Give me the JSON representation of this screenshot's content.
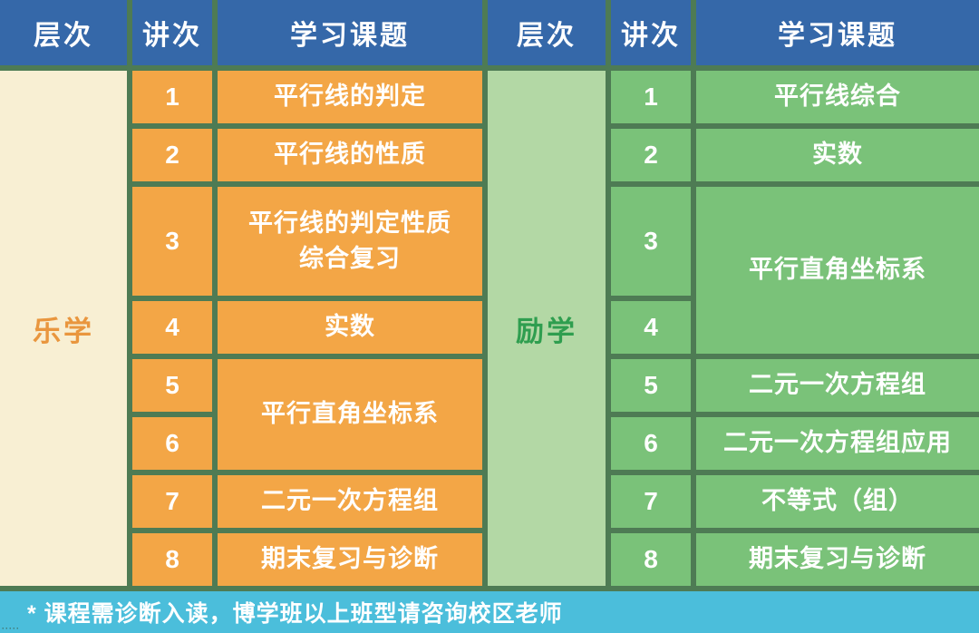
{
  "columns": {
    "level": "层次",
    "lecture": "讲次",
    "topic": "学习课题"
  },
  "sections": [
    {
      "level": "乐学",
      "lectures": [
        "1",
        "2",
        "3",
        "4",
        "5",
        "6",
        "7",
        "8"
      ],
      "topics": [
        {
          "lectures": "1",
          "title": "平行线的判定"
        },
        {
          "lectures": "2",
          "title": "平行线的性质"
        },
        {
          "lectures": "3",
          "title": "平行线的判定性质\n综合复习"
        },
        {
          "lectures": "4",
          "title": "实数"
        },
        {
          "lectures": "5-6",
          "title": "平行直角坐标系"
        },
        {
          "lectures": "7",
          "title": "二元一次方程组"
        },
        {
          "lectures": "8",
          "title": "期末复习与诊断"
        }
      ]
    },
    {
      "level": "励学",
      "lectures": [
        "1",
        "2",
        "3",
        "4",
        "5",
        "6",
        "7",
        "8"
      ],
      "topics": [
        {
          "lectures": "1",
          "title": "平行线综合"
        },
        {
          "lectures": "2",
          "title": "实数"
        },
        {
          "lectures": "3-4",
          "title": "平行直角坐标系"
        },
        {
          "lectures": "5",
          "title": "二元一次方程组"
        },
        {
          "lectures": "6",
          "title": "二元一次方程组应用"
        },
        {
          "lectures": "7",
          "title": "不等式（组）"
        },
        {
          "lectures": "8",
          "title": "期末复习与诊断"
        }
      ]
    }
  ],
  "footer": {
    "note": "* 课程需诊断入读，博学班以上班型请咨询校区老师",
    "corner_marks": "·····"
  },
  "colors": {
    "header_bg": "#3568A9",
    "border": "#4E7B54",
    "orange": "#F3A646",
    "cream": "#F8EFD3",
    "orange_text": "#E9963E",
    "green": "#7AC279",
    "light_green": "#B3D8A5",
    "green_text": "#2F9E4F",
    "footer_bg": "#4BBEDB",
    "text_white": "#FFFFFF"
  }
}
